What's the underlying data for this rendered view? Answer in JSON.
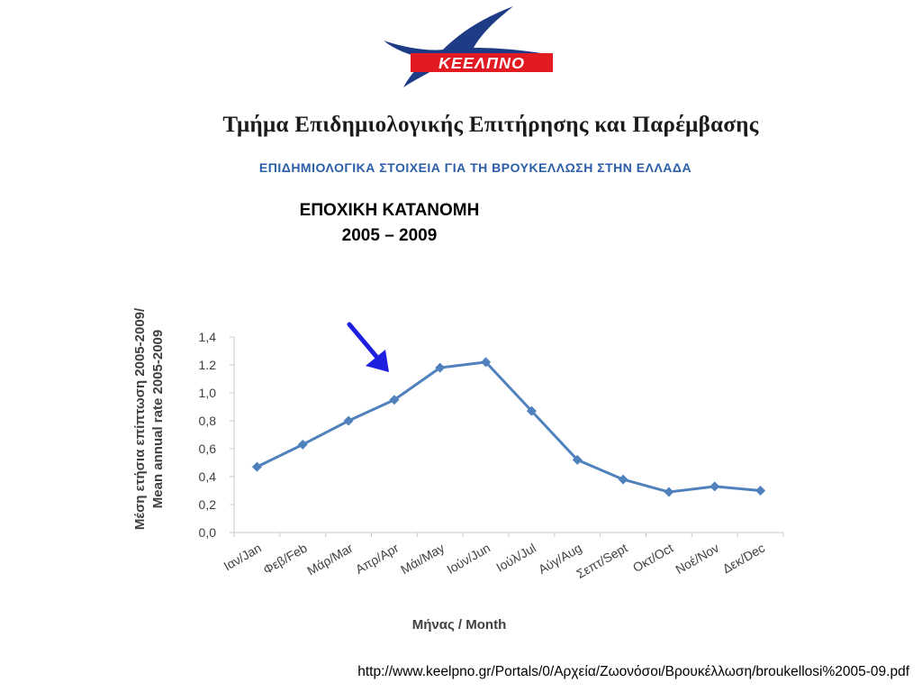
{
  "logo": {
    "text": "ΚΕΕΛΠΝΟ"
  },
  "header": {
    "department": "Τμήμα Επιδημιολογικής Επιτήρησης και Παρέμβασης",
    "subtitle": "ΕΠΙΔΗΜΙΟΛΟΓΙΚΑ ΣΤΟΙΧΕΙΑ ΓΙΑ ΤΗ ΒΡΟΥΚΕΛΛΩΣΗ ΣΤΗΝ ΕΛΛΑΔΑ"
  },
  "chart_data": {
    "type": "line",
    "title": "ΕΠΟΧΙΚΗ ΚΑΤΑΝΟΜΗ",
    "subtitle": "2005 – 2009",
    "categories": [
      "Ιαν/Jan",
      "Φεβ/Feb",
      "Μάρ/Mar",
      "Απρ/Apr",
      "Μάι/May",
      "Ιούν/Jun",
      "Ιούλ/Jul",
      "Αύγ/Aug",
      "Σεπτ/Sept",
      "Οκτ/Oct",
      "Νοέ/Nov",
      "Δεκ/Dec"
    ],
    "series": [
      {
        "values": [
          0.47,
          0.63,
          0.8,
          0.95,
          1.18,
          1.22,
          0.87,
          0.52,
          0.38,
          0.29,
          0.33,
          0.3
        ]
      }
    ],
    "ylim": [
      0,
      1.4
    ],
    "yticks": [
      "0,0",
      "0,2",
      "0,4",
      "0,6",
      "0,8",
      "1,0",
      "1.2",
      "1,4"
    ],
    "ylabel_line1": "Μέση ετήσια επίπτωση 2005-2009/",
    "ylabel_line2": "Mean annual rate 2005-2009",
    "xlabel": "Μήνας / Month",
    "grid": false,
    "colors": {
      "line": "#4f81bd",
      "arrow": "#1f1fe0",
      "axis": "#c8c8c8"
    }
  },
  "footer": {
    "source_url": "http://www.keelpno.gr/Portals/0/Αρχεία/Ζωονόσοι/Βρουκέλλωση/broukellosi%2005-09.pdf"
  }
}
